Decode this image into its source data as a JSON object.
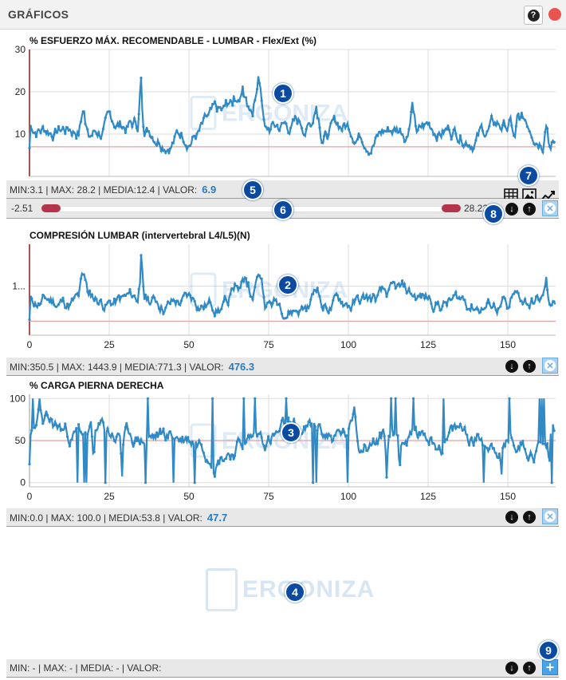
{
  "window": {
    "title": "GRÁFICOS",
    "help_glyph": "?"
  },
  "watermark": "ERGONIZA",
  "charts": [
    {
      "title": "% ESFUERZO MÁX. RECOMENDABLE - LUMBAR - Flex/Ext (%)",
      "yticks": [
        "30",
        "20",
        "10"
      ],
      "xticks": [],
      "stats": {
        "label": "MIN:3.1 | MAX: 28.2 | MEDIA:12.4  | VALOR:",
        "value": "6.9"
      },
      "slider": {
        "min_label": "-2.51",
        "max_label": "28.22"
      },
      "threshold": 7,
      "ylim": [
        0,
        30
      ]
    },
    {
      "title": "COMPRESIÓN LUMBAR (intervertebral L4/L5)(N)",
      "yticks": [
        "1..."
      ],
      "xticks": [
        "0",
        "25",
        "50",
        "75",
        "100",
        "125",
        "150"
      ],
      "stats": {
        "label": "MIN:350.5 | MAX: 1443.9 | MEDIA:771.3  | VALOR:",
        "value": "476.3"
      },
      "threshold": 500,
      "ylim": [
        300,
        1600
      ]
    },
    {
      "title": "% CARGA PIERNA DERECHA",
      "yticks": [
        "100",
        "50",
        "0"
      ],
      "xticks": [
        "0",
        "25",
        "50",
        "75",
        "100",
        "125",
        "150"
      ],
      "stats": {
        "label": "MIN:0.0 | MAX: 100.0 | MEDIA:53.8  | VALOR:",
        "value": "47.7"
      },
      "threshold": 50,
      "ylim": [
        -5,
        105
      ]
    },
    {
      "title": "",
      "stats": {
        "label": "MIN: - | MAX: - | MEDIA: -  | VALOR:",
        "value": ""
      }
    }
  ],
  "badges": [
    "1",
    "2",
    "3",
    "4",
    "5",
    "6",
    "7",
    "8",
    "9"
  ],
  "icons": {
    "table": "table-icon",
    "image": "image-icon",
    "trend": "line-chart-icon",
    "down": "arrow-down-icon",
    "up": "arrow-up-icon",
    "close": "close-icon",
    "add": "add-icon"
  },
  "colors": {
    "series": "#2f8ac6",
    "threshold": "#e8a0a0",
    "accent": "#0a4aa0"
  }
}
